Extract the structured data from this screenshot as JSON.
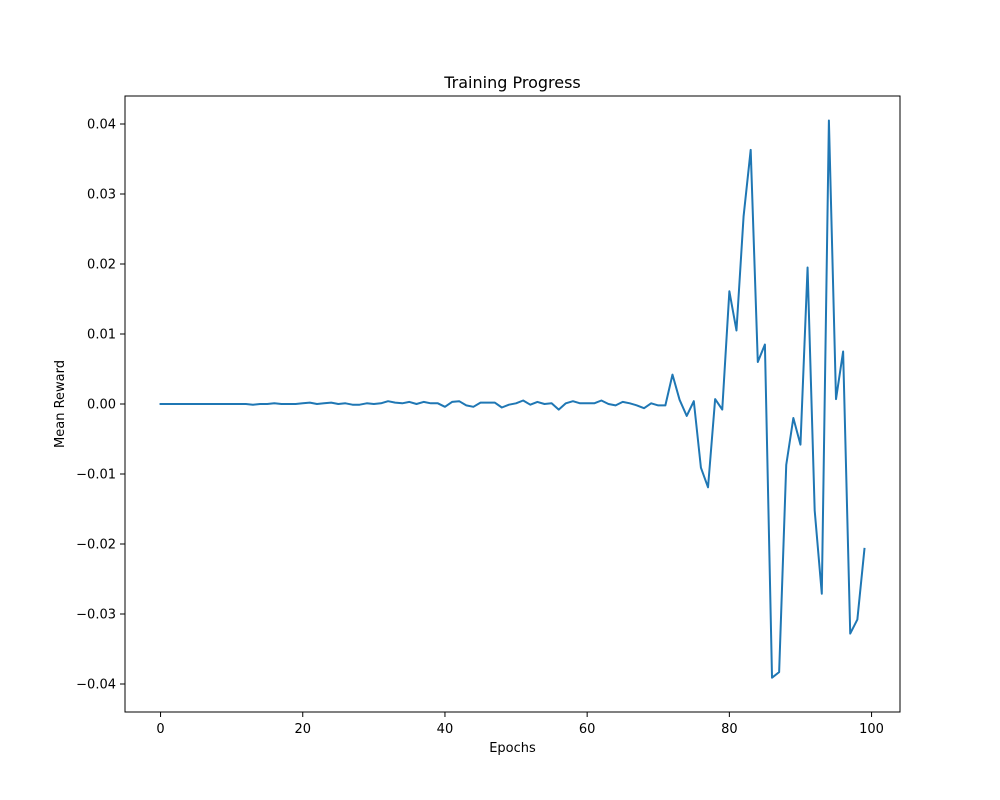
{
  "chart_data": {
    "type": "line",
    "title": "Training Progress",
    "xlabel": "Epochs",
    "ylabel": "Mean Reward",
    "xlim": [
      -5,
      104
    ],
    "ylim": [
      -0.044,
      0.044
    ],
    "x_ticks": [
      0,
      20,
      40,
      60,
      80,
      100
    ],
    "x_tick_labels": [
      "0",
      "20",
      "40",
      "60",
      "80",
      "100"
    ],
    "y_ticks": [
      -0.04,
      -0.03,
      -0.02,
      -0.01,
      0.0,
      0.01,
      0.02,
      0.03,
      0.04
    ],
    "y_tick_labels": [
      "−0.04",
      "−0.03",
      "−0.02",
      "−0.01",
      "0.00",
      "0.01",
      "0.02",
      "0.03",
      "0.04"
    ],
    "grid": false,
    "line_color": "#1f77b4",
    "series": [
      {
        "x": [
          0,
          1,
          2,
          3,
          4,
          5,
          6,
          7,
          8,
          9,
          10,
          11,
          12,
          13,
          14,
          15,
          16,
          17,
          18,
          19,
          20,
          21,
          22,
          23,
          24,
          25,
          26,
          27,
          28,
          29,
          30,
          31,
          32,
          33,
          34,
          35,
          36,
          37,
          38,
          39,
          40,
          41,
          42,
          43,
          44,
          45,
          46,
          47,
          48,
          49,
          50,
          51,
          52,
          53,
          54,
          55,
          56,
          57,
          58,
          59,
          60,
          61,
          62,
          63,
          64,
          65,
          66,
          67,
          68,
          69,
          70,
          71,
          72,
          73,
          74,
          75,
          76,
          77,
          78,
          79,
          80,
          81,
          82,
          83,
          84,
          85,
          86,
          87,
          88,
          89,
          90,
          91,
          92,
          93,
          94,
          95,
          96,
          97,
          98,
          99
        ],
        "values": [
          0.0,
          0.0,
          0.0,
          0.0,
          0.0,
          0.0,
          0.0,
          0.0,
          0.0,
          0.0,
          0.0,
          0.0,
          0.0,
          -0.0001,
          0.0,
          0.0,
          0.0001,
          0.0,
          0.0,
          0.0,
          0.0001,
          0.0002,
          0.0,
          0.0001,
          0.0002,
          0.0,
          0.0001,
          -0.0001,
          -0.0001,
          0.0001,
          0.0,
          0.0001,
          0.0004,
          0.0002,
          0.0001,
          0.0003,
          0.0,
          0.0003,
          0.0001,
          0.0001,
          -0.0004,
          0.0003,
          0.0004,
          -0.0002,
          -0.0004,
          0.0002,
          0.0002,
          0.0002,
          -0.0005,
          -0.0001,
          0.0001,
          0.0005,
          -0.0001,
          0.0003,
          0.0,
          0.0001,
          -0.0008,
          0.0001,
          0.0004,
          0.0001,
          0.0001,
          0.0001,
          0.0005,
          0.0,
          -0.0002,
          0.0003,
          0.0001,
          -0.0002,
          -0.0006,
          0.0001,
          -0.0002,
          -0.0002,
          0.0042,
          0.0006,
          -0.0017,
          0.0004,
          -0.0091,
          -0.0119,
          0.0007,
          -0.0008,
          0.0161,
          0.0105,
          0.0268,
          0.0363,
          0.006,
          0.0085,
          -0.0391,
          -0.0383,
          -0.0087,
          -0.002,
          -0.0058,
          0.0195,
          -0.0152,
          -0.0271,
          0.0405,
          0.0007,
          0.0075,
          -0.0328,
          -0.0308,
          -0.0207
        ]
      }
    ]
  }
}
